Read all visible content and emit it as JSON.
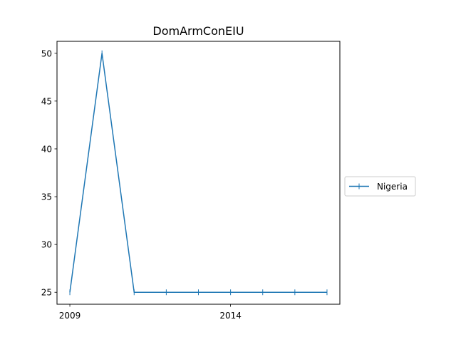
{
  "chart_data": {
    "type": "line",
    "title": "DomArmConEIU",
    "xlabel": "",
    "ylabel": "",
    "x": [
      2009,
      2010,
      2011,
      2012,
      2013,
      2014,
      2015,
      2016,
      2017
    ],
    "xticks": [
      2009,
      2014
    ],
    "yticks": [
      25,
      30,
      35,
      40,
      45,
      50
    ],
    "xlim": [
      2008.6,
      2017.4
    ],
    "ylim": [
      23.75,
      51.25
    ],
    "grid": false,
    "legend_position": "outside-right",
    "series": [
      {
        "name": "Nigeria",
        "color": "#1f77b4",
        "marker": "|",
        "values": [
          25,
          50,
          25,
          25,
          25,
          25,
          25,
          25,
          25
        ]
      }
    ]
  }
}
